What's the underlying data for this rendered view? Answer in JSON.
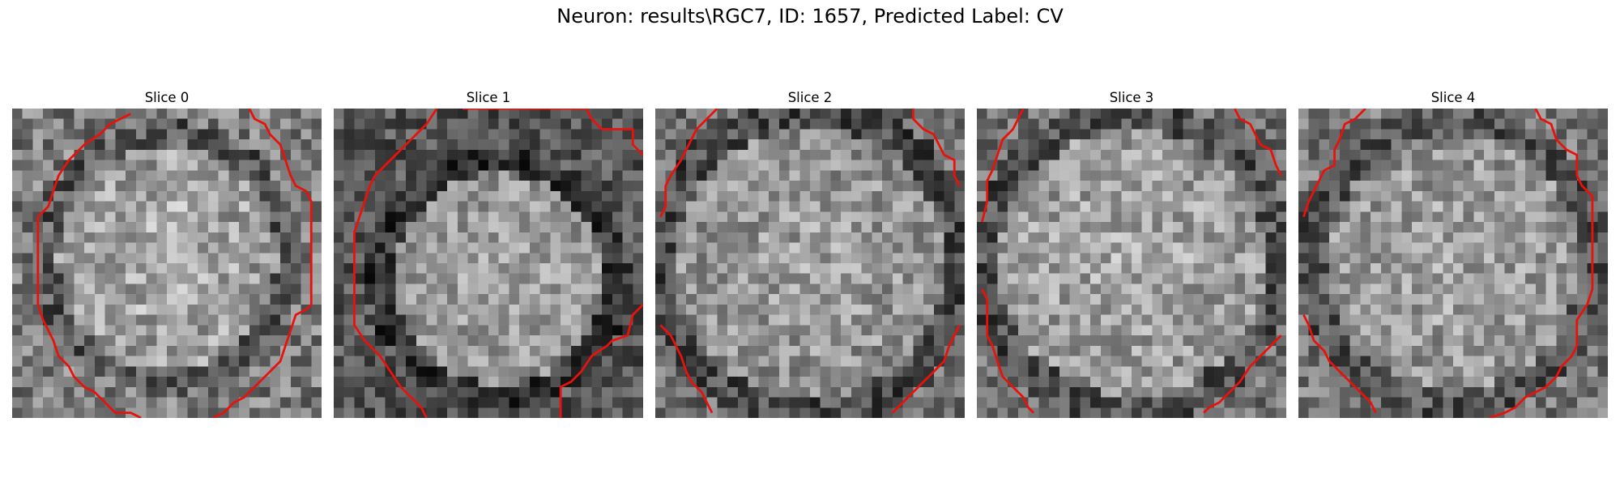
{
  "figure": {
    "title": "Neuron: results\\RGC7, ID: 1657, Predicted Label: CV",
    "contour_color": "#e8120c"
  },
  "panels": [
    {
      "title": "Slice 0"
    },
    {
      "title": "Slice 1"
    },
    {
      "title": "Slice 2"
    },
    {
      "title": "Slice 3"
    },
    {
      "title": "Slice 4"
    }
  ]
}
